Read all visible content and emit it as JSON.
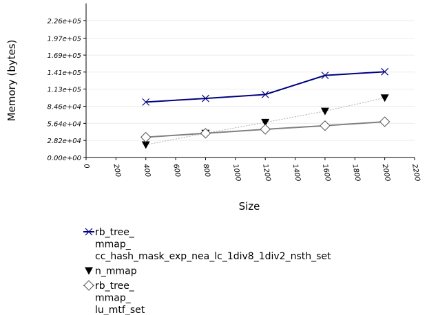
{
  "chart_data": {
    "type": "line",
    "xlabel": "Size",
    "ylabel": "Memory (bytes)",
    "xlim": [
      0,
      2200
    ],
    "ylim": [
      0,
      254250
    ],
    "xticks": [
      0,
      200,
      400,
      600,
      800,
      1000,
      1200,
      1400,
      1600,
      1800,
      2000,
      2200
    ],
    "yticks": [
      {
        "value": 0,
        "label": "0.00e+00"
      },
      {
        "value": 28200,
        "label": "2.82e+04"
      },
      {
        "value": 56400,
        "label": "5.64e+04"
      },
      {
        "value": 84600,
        "label": "8.46e+04"
      },
      {
        "value": 113000,
        "label": "1.13e+05"
      },
      {
        "value": 141000,
        "label": "1.41e+05"
      },
      {
        "value": 169000,
        "label": "1.69e+05"
      },
      {
        "value": 197000,
        "label": "1.97e+05"
      },
      {
        "value": 226000,
        "label": "2.26e+05"
      }
    ],
    "grid": true,
    "legend_position": "bottom",
    "series": [
      {
        "name_lines": [
          "rb_tree_",
          "mmap_",
          "cc_hash_mask_exp_nea_lc_1div8_1div2_nsth_set"
        ],
        "marker": "x",
        "color": "#000080",
        "line_style": "solid",
        "x": [
          400,
          800,
          1200,
          1600,
          2000
        ],
        "y": [
          91500,
          97500,
          104000,
          135500,
          141500
        ]
      },
      {
        "name_lines": [
          "n_mmap"
        ],
        "marker": "triangle-down",
        "color": "#000000",
        "line_style": "dotted",
        "x": [
          400,
          800,
          1200,
          1600,
          2000
        ],
        "y": [
          21000,
          40000,
          58000,
          76500,
          98500
        ]
      },
      {
        "name_lines": [
          "rb_tree_",
          "mmap_",
          "lu_mtf_set"
        ],
        "marker": "diamond",
        "color": "#808080",
        "line_style": "solid",
        "x": [
          400,
          800,
          1200,
          1600,
          2000
        ],
        "y": [
          33500,
          40000,
          46500,
          52500,
          59000
        ]
      }
    ]
  }
}
